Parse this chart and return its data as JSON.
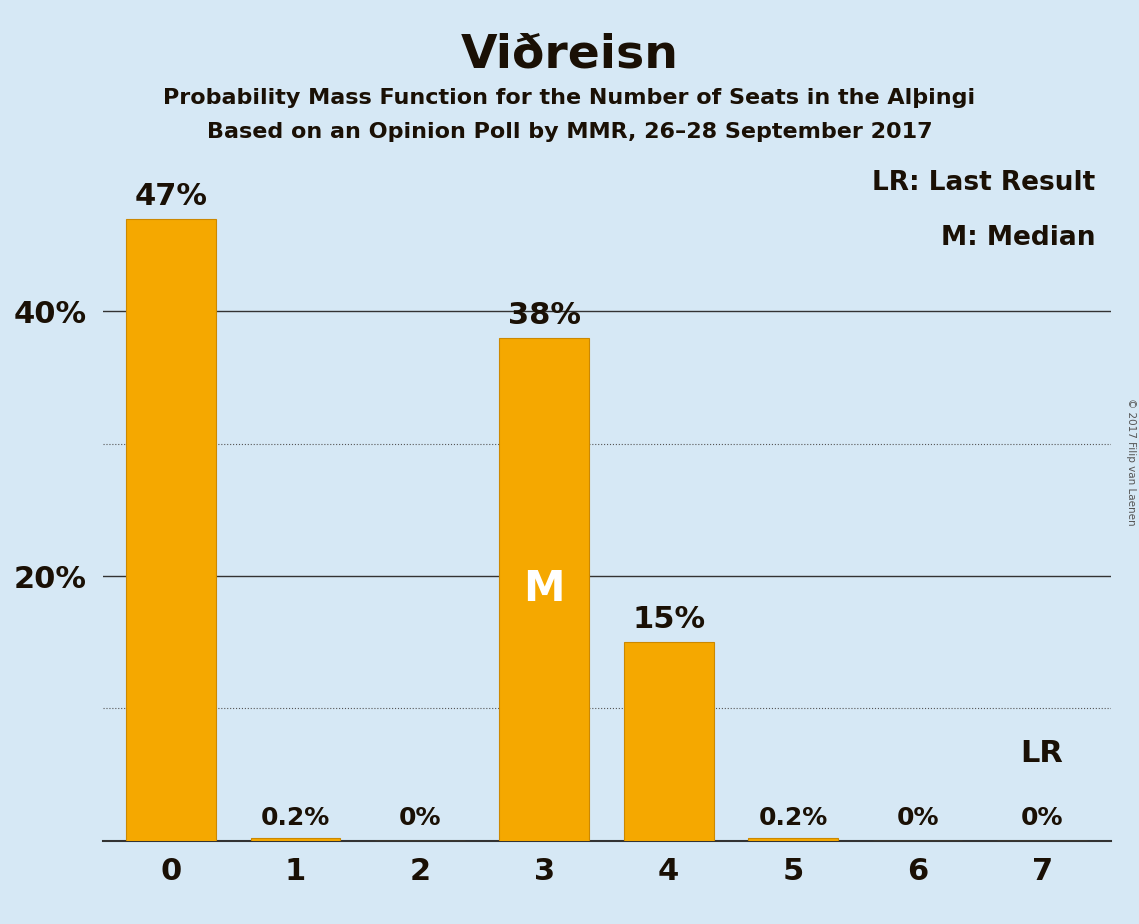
{
  "title": "Viðreisn",
  "subtitle1_text": "Probability Mass Function for the Number of Seats in the Alþingi",
  "subtitle2_text": "Based on an Opinion Poll by MMR, 26–28 September 2017",
  "categories": [
    0,
    1,
    2,
    3,
    4,
    5,
    6,
    7
  ],
  "values": [
    47.0,
    0.2,
    0.0,
    38.0,
    15.0,
    0.2,
    0.0,
    0.0
  ],
  "bar_color": "#F5A800",
  "bar_edge_color": "#CC8800",
  "background_color": "#D6E8F5",
  "text_color": "#1a1005",
  "shown_yticks": [
    20,
    40
  ],
  "shown_ytick_labels": [
    "20%",
    "40%"
  ],
  "solid_gridlines": [
    20,
    40
  ],
  "dotted_gridlines": [
    10,
    30
  ],
  "ylim": [
    0,
    52
  ],
  "xlim_min": -0.55,
  "xlim_max": 7.55,
  "bar_width": 0.72,
  "median_seat": 3,
  "lr_seat": 7,
  "lr_label": "LR",
  "copyright_text": "© 2017 Filip van Laenen",
  "legend_lr": "LR: Last Result",
  "legend_m": "M: Median",
  "bar_labels": [
    "47%",
    "0.2%",
    "0%",
    "38%",
    "15%",
    "0.2%",
    "0%",
    "0%"
  ],
  "label_fontsize_large": 22,
  "label_fontsize_small": 18,
  "tick_fontsize": 22,
  "title_fontsize": 34,
  "subtitle_fontsize": 16,
  "legend_fontsize": 19,
  "median_fontsize": 30,
  "lr_above_fontsize": 22
}
